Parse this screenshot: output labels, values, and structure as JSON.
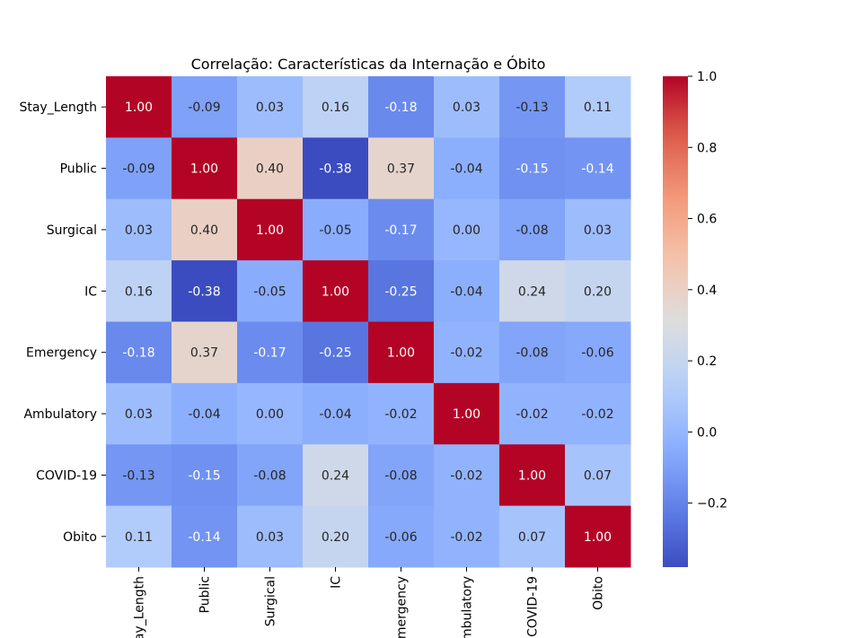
{
  "chart_data": {
    "type": "heatmap",
    "title": "Correlação: Características da Internação e Óbito",
    "xlabel": "",
    "ylabel": "",
    "row_labels": [
      "Stay_Length",
      "Public",
      "Surgical",
      "IC",
      "Emergency",
      "Ambulatory",
      "COVID-19",
      "Obito"
    ],
    "col_labels": [
      "Stay_Length",
      "Public",
      "Surgical",
      "IC",
      "Emergency",
      "Ambulatory",
      "COVID-19",
      "Obito"
    ],
    "values": [
      [
        1.0,
        -0.09,
        0.03,
        0.16,
        -0.18,
        0.03,
        -0.13,
        0.11
      ],
      [
        -0.09,
        1.0,
        0.4,
        -0.38,
        0.37,
        -0.04,
        -0.15,
        -0.14
      ],
      [
        0.03,
        0.4,
        1.0,
        -0.05,
        -0.17,
        0.0,
        -0.08,
        0.03
      ],
      [
        0.16,
        -0.38,
        -0.05,
        1.0,
        -0.25,
        -0.04,
        0.24,
        0.2
      ],
      [
        -0.18,
        0.37,
        -0.17,
        -0.25,
        1.0,
        -0.02,
        -0.08,
        -0.06
      ],
      [
        0.03,
        -0.04,
        0.0,
        -0.04,
        -0.02,
        1.0,
        -0.02,
        -0.02
      ],
      [
        -0.13,
        -0.15,
        -0.08,
        0.24,
        -0.08,
        -0.02,
        1.0,
        0.07
      ],
      [
        0.11,
        -0.14,
        0.03,
        0.2,
        -0.06,
        -0.02,
        0.07,
        1.0
      ]
    ],
    "annotation_format": "0.00",
    "colormap": "coolwarm",
    "color_range": [
      -0.38,
      1.0
    ],
    "colorbar_ticks": [
      1.0,
      0.8,
      0.6,
      0.4,
      0.2,
      0.0,
      -0.2
    ],
    "colorbar_tick_labels": [
      "1.0",
      "0.8",
      "0.6",
      "0.4",
      "0.2",
      "0.0",
      "−0.2"
    ],
    "grid": false,
    "legend": "colorbar-right"
  }
}
